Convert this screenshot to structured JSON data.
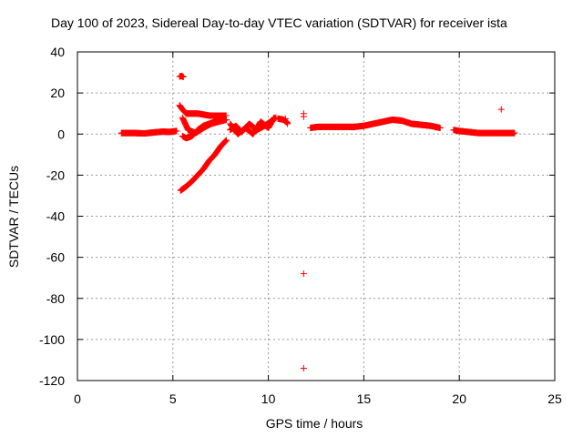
{
  "chart_data": {
    "type": "scatter",
    "title": "Day 100 of 2023, Sidereal Day-to-day VTEC variation (SDTVAR) for receiver ista",
    "xlabel": "GPS time / hours",
    "ylabel": "SDTVAR / TECUs",
    "xlim": [
      0,
      25
    ],
    "ylim": [
      -120,
      40
    ],
    "xticks": [
      0,
      5,
      10,
      15,
      20,
      25
    ],
    "yticks": [
      -120,
      -100,
      -80,
      -60,
      -40,
      -20,
      0,
      20,
      40
    ],
    "grid": true,
    "marker": "+",
    "color": "#ff0000",
    "segments": [
      {
        "x": [
          2.3,
          3.0,
          3.5,
          4.0,
          4.5,
          4.8,
          5.2
        ],
        "y": [
          0.5,
          0.5,
          0.3,
          0.8,
          1.2,
          1.0,
          1.5
        ]
      },
      {
        "x": [
          5.35,
          5.5,
          5.7,
          6.0,
          6.3,
          6.6,
          6.9,
          7.2,
          7.5,
          7.8
        ],
        "y": [
          14,
          12,
          10,
          10,
          10,
          9.5,
          9,
          9,
          9,
          9
        ]
      },
      {
        "x": [
          5.5,
          5.8,
          6.2,
          6.6,
          7.0,
          7.4,
          7.8
        ],
        "y": [
          8,
          2,
          0.5,
          3,
          5,
          6,
          7
        ]
      },
      {
        "x": [
          5.5,
          5.7,
          6.0,
          6.3,
          6.6,
          6.9,
          7.2,
          7.5,
          7.8
        ],
        "y": [
          -1,
          -2,
          -1,
          2,
          4,
          5,
          6,
          6.5,
          7
        ]
      },
      {
        "x": [
          5.4,
          5.7,
          6.0,
          6.3,
          6.6,
          6.9,
          7.2,
          7.5,
          7.8
        ],
        "y": [
          -27.5,
          -25.5,
          -23,
          -20,
          -17,
          -13,
          -10,
          -6,
          -3
        ]
      },
      {
        "x": [
          5.35,
          5.45,
          5.55
        ],
        "y": [
          28,
          28.3,
          27.8
        ]
      },
      {
        "x": [
          8.0,
          8.3,
          8.6,
          9.0,
          9.4,
          9.8,
          10.1,
          10.4
        ],
        "y": [
          2,
          4,
          1,
          5,
          2,
          4,
          6,
          8
        ]
      },
      {
        "x": [
          8.0,
          8.4,
          8.8,
          9.2,
          9.6,
          10.0,
          10.3
        ],
        "y": [
          5,
          0,
          3,
          0,
          6,
          3,
          8
        ]
      },
      {
        "x": [
          10.5,
          10.8,
          11.0
        ],
        "y": [
          7.5,
          7.0,
          5.5
        ]
      },
      {
        "x": [
          12.2,
          12.6,
          13.0,
          13.5,
          14.0,
          14.5,
          15.0,
          15.5,
          16.0,
          16.5,
          17.0,
          17.5,
          18.0,
          18.5,
          19.0
        ],
        "y": [
          3,
          3.5,
          3.5,
          3.5,
          3.5,
          3.5,
          4,
          5,
          6,
          7,
          6.5,
          5,
          4.5,
          4,
          3
        ]
      },
      {
        "x": [
          19.7,
          20.0,
          20.5,
          21.0,
          21.5,
          22.0,
          22.5,
          22.9
        ],
        "y": [
          2,
          1.5,
          1,
          0.5,
          0.5,
          0.5,
          0.5,
          0.5
        ]
      }
    ],
    "outliers": [
      {
        "x": 10.9,
        "y": 7.5
      },
      {
        "x": 11.0,
        "y": 5
      },
      {
        "x": 11.85,
        "y": 10
      },
      {
        "x": 11.85,
        "y": 8.5
      },
      {
        "x": 11.85,
        "y": -68
      },
      {
        "x": 11.85,
        "y": -114
      },
      {
        "x": 22.2,
        "y": 12
      }
    ]
  }
}
